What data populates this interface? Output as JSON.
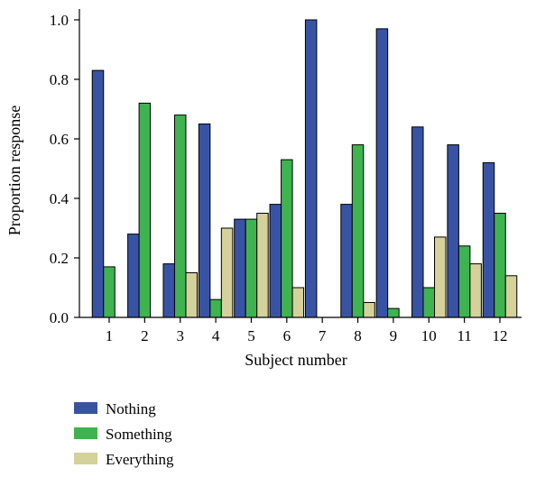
{
  "chart_data": {
    "type": "bar",
    "title": "",
    "xlabel": "Subject number",
    "ylabel": "Proportion response",
    "categories": [
      "1",
      "2",
      "3",
      "4",
      "5",
      "6",
      "7",
      "8",
      "9",
      "10",
      "11",
      "12"
    ],
    "ylim": [
      0,
      1.05
    ],
    "y_ticks": [
      "0.0",
      "0.2",
      "0.4",
      "0.6",
      "0.8",
      "1.0"
    ],
    "y_tick_values": [
      0,
      0.2,
      0.4,
      0.6,
      0.8,
      1.0
    ],
    "grid": false,
    "legend_position": "bottom-left",
    "series": [
      {
        "name": "Nothing",
        "color": "#3953a4",
        "values": [
          0.83,
          0.28,
          0.18,
          0.65,
          0.33,
          0.38,
          1.0,
          0.38,
          0.97,
          0.64,
          0.58,
          0.52
        ]
      },
      {
        "name": "Something",
        "color": "#3fb34f",
        "values": [
          0.17,
          0.72,
          0.68,
          0.06,
          0.33,
          0.53,
          0.0,
          0.58,
          0.03,
          0.1,
          0.24,
          0.35
        ]
      },
      {
        "name": "Everything",
        "color": "#d4d19b",
        "values": [
          0.0,
          0.0,
          0.15,
          0.3,
          0.35,
          0.1,
          0.0,
          0.05,
          0.0,
          0.27,
          0.18,
          0.14
        ]
      }
    ]
  }
}
